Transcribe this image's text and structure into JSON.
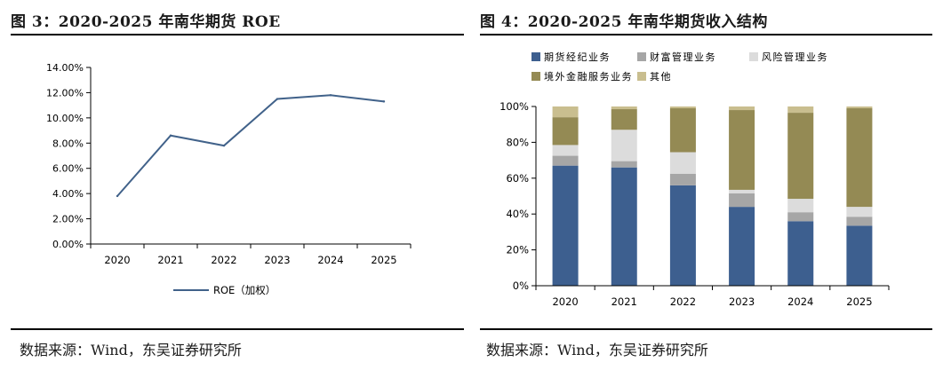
{
  "left": {
    "title": "图 3：2020-2025 年南华期货 ROE",
    "source": "数据来源：Wind，东吴证券研究所"
  },
  "right": {
    "title": "图 4：2020-2025 年南华期货收入结构",
    "source": "数据来源：Wind，东吴证券研究所"
  },
  "colors": {
    "line": "#41628A",
    "futures_brokerage": "#3D5F8F",
    "wealth_mgmt": "#A6A6A6",
    "risk_mgmt": "#DCDCDC",
    "overseas_finance": "#948A54",
    "other": "#C9BE8F"
  },
  "chart_data": [
    {
      "type": "line",
      "title": "图 3：2020-2025 年南华期货 ROE",
      "categories": [
        "2020",
        "2021",
        "2022",
        "2023",
        "2024",
        "2025"
      ],
      "series": [
        {
          "name": "ROE（加权）",
          "values": [
            3.8,
            8.6,
            7.8,
            11.5,
            11.8,
            11.3
          ]
        }
      ],
      "ylim": [
        0,
        14
      ],
      "yticks": [
        0,
        2,
        4,
        6,
        8,
        10,
        12,
        14
      ],
      "ytick_labels": [
        "0.00%",
        "2.00%",
        "4.00%",
        "6.00%",
        "8.00%",
        "10.00%",
        "12.00%",
        "14.00%"
      ],
      "xlabel": "",
      "ylabel": "",
      "legend": "bottom",
      "grid": false
    },
    {
      "type": "bar",
      "stacked": "percent",
      "title": "图 4：2020-2025 年南华期货收入结构",
      "categories": [
        "2020",
        "2021",
        "2022",
        "2023",
        "2024",
        "2025"
      ],
      "series": [
        {
          "name": "期货经纪业务",
          "values": [
            67,
            66,
            56,
            44,
            36,
            33.5
          ]
        },
        {
          "name": "财富管理业务",
          "values": [
            5.5,
            3.5,
            6.5,
            7.5,
            5,
            5
          ]
        },
        {
          "name": "风险管理业务",
          "values": [
            6,
            17.5,
            12,
            2,
            7.5,
            5.5
          ]
        },
        {
          "name": "境外金融服务业务",
          "values": [
            15.5,
            11.5,
            24.5,
            44.5,
            48,
            55
          ]
        },
        {
          "name": "其他",
          "values": [
            6,
            1.5,
            1,
            2,
            3.5,
            1
          ]
        }
      ],
      "ylim": [
        0,
        100
      ],
      "yticks": [
        0,
        20,
        40,
        60,
        80,
        100
      ],
      "ytick_labels": [
        "0%",
        "20%",
        "40%",
        "60%",
        "80%",
        "100%"
      ],
      "legend": "top",
      "grid": false
    }
  ]
}
